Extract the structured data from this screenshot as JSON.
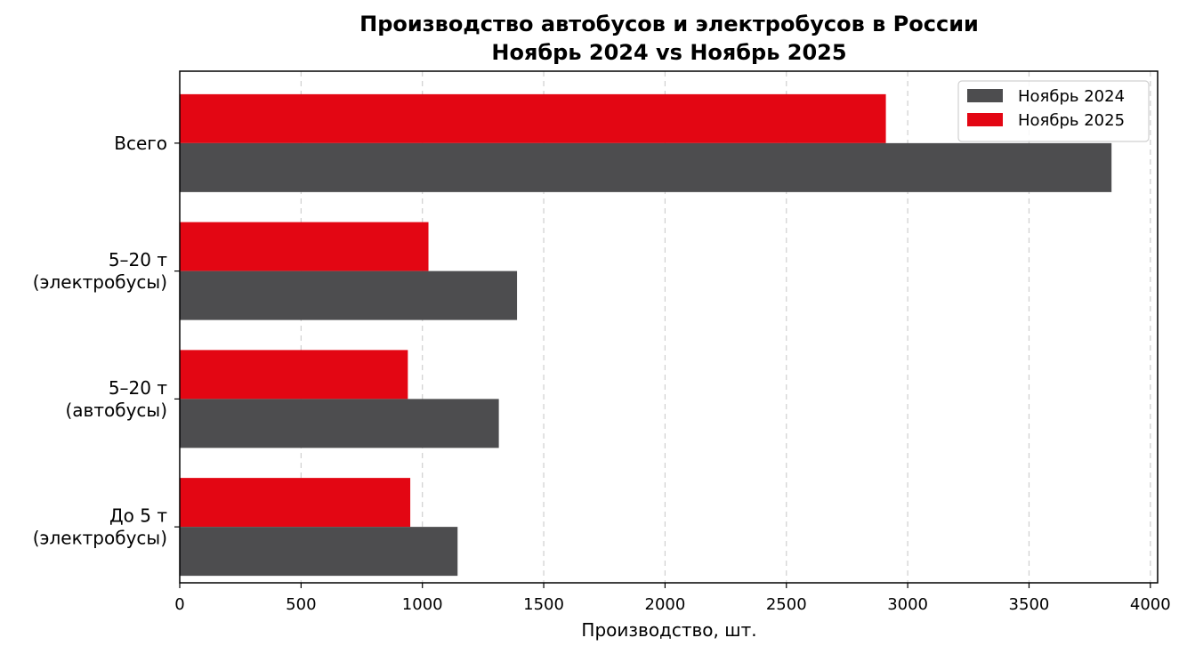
{
  "chart_data": {
    "type": "bar",
    "orientation": "horizontal",
    "title": "Производство автобусов и электробусов в России",
    "subtitle": "Ноябрь 2024 vs Ноябрь 2025",
    "xlabel": "Производство, шт.",
    "ylabel": "",
    "xlim": [
      0,
      4030
    ],
    "xticks": [
      0,
      500,
      1000,
      1500,
      2000,
      2500,
      3000,
      3500,
      4000
    ],
    "grid": "x, dashed",
    "legend_position": "top-right",
    "categories": [
      [
        "Всего"
      ],
      [
        "5–20 т",
        "(электробусы)"
      ],
      [
        "5–20 т",
        "(автобусы)"
      ],
      [
        "До 5 т",
        "(электробусы)"
      ]
    ],
    "series": [
      {
        "name": "Ноябрь 2024",
        "color": "#4d4d4f",
        "values": [
          3840,
          1390,
          1315,
          1145
        ]
      },
      {
        "name": "Ноябрь 2025",
        "color": "#e30613",
        "values": [
          2910,
          1025,
          940,
          950
        ]
      }
    ]
  }
}
